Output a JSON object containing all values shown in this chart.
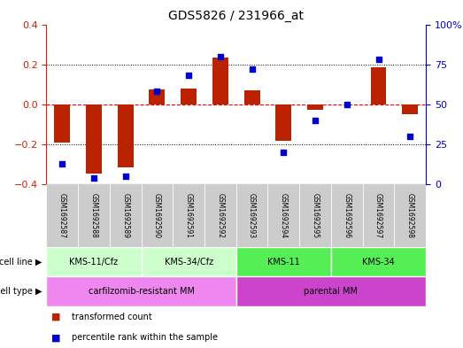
{
  "title": "GDS5826 / 231966_at",
  "samples": [
    "GSM1692587",
    "GSM1692588",
    "GSM1692589",
    "GSM1692590",
    "GSM1692591",
    "GSM1692592",
    "GSM1692593",
    "GSM1692594",
    "GSM1692595",
    "GSM1692596",
    "GSM1692597",
    "GSM1692598"
  ],
  "transformed_count": [
    -0.19,
    -0.345,
    -0.315,
    0.075,
    0.08,
    0.235,
    0.07,
    -0.18,
    -0.025,
    0.0,
    0.185,
    -0.05
  ],
  "percentile_rank": [
    13,
    4,
    5,
    58,
    68,
    80,
    72,
    20,
    40,
    50,
    78,
    30
  ],
  "ylim_left": [
    -0.4,
    0.4
  ],
  "ylim_right": [
    0,
    100
  ],
  "yticks_left": [
    -0.4,
    -0.2,
    0.0,
    0.2,
    0.4
  ],
  "yticks_right": [
    0,
    25,
    50,
    75,
    100
  ],
  "ytick_labels_right": [
    "0",
    "25",
    "50",
    "75",
    "100%"
  ],
  "bar_color": "#bb2200",
  "dot_color": "#0000cc",
  "cell_line_groups": [
    {
      "label": "KMS-11/Cfz",
      "start": 0,
      "end": 3,
      "color": "#ccffcc"
    },
    {
      "label": "KMS-34/Cfz",
      "start": 3,
      "end": 6,
      "color": "#ccffcc"
    },
    {
      "label": "KMS-11",
      "start": 6,
      "end": 9,
      "color": "#55ee55"
    },
    {
      "label": "KMS-34",
      "start": 9,
      "end": 12,
      "color": "#55ee55"
    }
  ],
  "cell_type_groups": [
    {
      "label": "carfilzomib-resistant MM",
      "start": 0,
      "end": 6,
      "color": "#ee88ee"
    },
    {
      "label": "parental MM",
      "start": 6,
      "end": 12,
      "color": "#cc44cc"
    }
  ],
  "legend_items": [
    {
      "label": "transformed count",
      "color": "#bb2200"
    },
    {
      "label": "percentile rank within the sample",
      "color": "#0000cc"
    }
  ],
  "bg_color": "#ffffff",
  "plot_bg_color": "#ffffff",
  "axis_label_color_left": "#cc2200",
  "axis_label_color_right": "#0000cc",
  "sample_label_bg": "#cccccc",
  "row_label_cell_line": "cell line",
  "row_label_cell_type": "cell type"
}
